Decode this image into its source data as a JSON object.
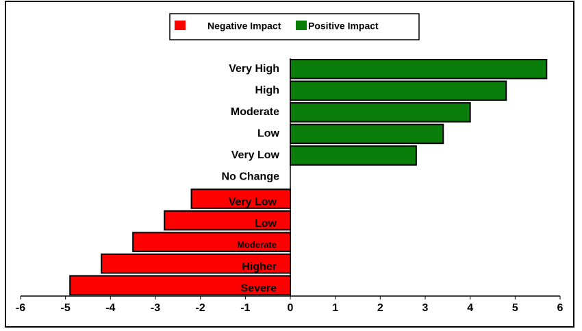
{
  "chart_data": {
    "type": "bar",
    "orientation": "horizontal",
    "categories": [
      "Very High",
      "High",
      "Moderate",
      "Low",
      "Very Low",
      "No Change",
      "Very Low",
      "Low",
      "Moderate",
      "Higher",
      "Severe"
    ],
    "series": [
      {
        "name": "Negative Impact",
        "color": "#ff0000",
        "values": [
          null,
          null,
          null,
          null,
          null,
          null,
          -2.2,
          -2.8,
          -3.5,
          -4.2,
          -4.9
        ]
      },
      {
        "name": "Positive Impact",
        "color": "#0a7d0a",
        "values": [
          5.7,
          4.8,
          4.0,
          3.4,
          2.8,
          0,
          null,
          null,
          null,
          null,
          null
        ]
      }
    ],
    "xlim": [
      -6,
      6
    ],
    "xticks": [
      -6,
      -5,
      -4,
      -3,
      -2,
      -1,
      0,
      1,
      2,
      3,
      4,
      5,
      6
    ],
    "legend": "top"
  }
}
